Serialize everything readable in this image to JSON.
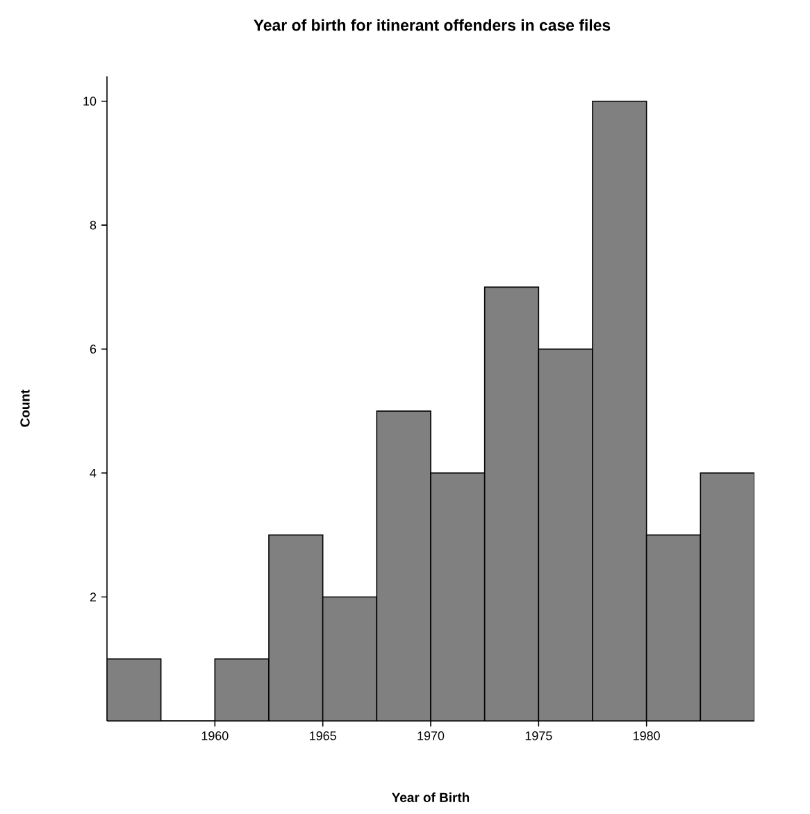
{
  "chart_data": {
    "type": "histogram",
    "title": "Year of birth for itinerant offenders in case files",
    "xlabel": "Year of Birth",
    "ylabel": "Count",
    "bins": [
      1955,
      1957.5,
      1960,
      1962.5,
      1965,
      1967.5,
      1970,
      1972.5,
      1975,
      1977.5,
      1980,
      1982.5,
      1985
    ],
    "values": [
      1,
      0,
      1,
      3,
      2,
      5,
      4,
      7,
      6,
      10,
      3,
      4
    ],
    "color": "#808080",
    "xlim": [
      1955,
      1985
    ],
    "ylim": [
      0,
      10.4
    ],
    "xticks": [
      1960,
      1965,
      1970,
      1975,
      1980
    ],
    "yticks": [
      2,
      4,
      6,
      8,
      10
    ]
  }
}
